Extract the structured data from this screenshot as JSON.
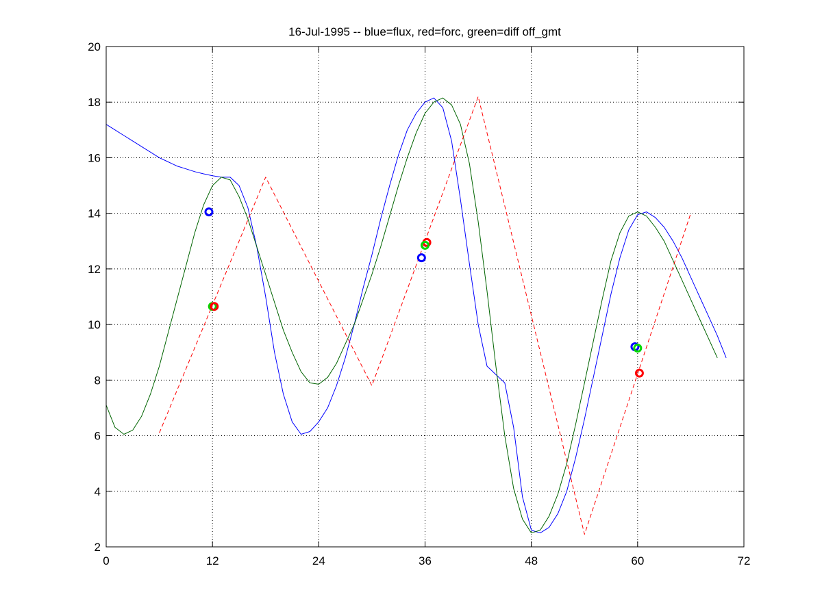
{
  "chart_data": {
    "type": "line",
    "title": "16-Jul-1995 -- blue=flux, red=forc, green=diff off_gmt",
    "xlabel": "",
    "ylabel": "",
    "xlim": [
      0,
      72
    ],
    "ylim": [
      2,
      20
    ],
    "xticks": [
      0,
      12,
      24,
      36,
      48,
      60,
      72
    ],
    "yticks": [
      2,
      4,
      6,
      8,
      10,
      12,
      14,
      16,
      18,
      20
    ],
    "grid": true,
    "legend": "none",
    "series": [
      {
        "color": "#0000ff",
        "style": "solid",
        "points": [
          [
            0,
            17.2
          ],
          [
            1,
            17.0
          ],
          [
            2,
            16.8
          ],
          [
            3,
            16.6
          ],
          [
            4,
            16.4
          ],
          [
            5,
            16.2
          ],
          [
            6,
            16.0
          ],
          [
            7,
            15.85
          ],
          [
            8,
            15.7
          ],
          [
            9,
            15.6
          ],
          [
            10,
            15.5
          ],
          [
            11,
            15.42
          ],
          [
            12,
            15.35
          ],
          [
            13,
            15.3
          ],
          [
            14,
            15.3
          ],
          [
            15,
            15.0
          ],
          [
            16,
            14.2
          ],
          [
            17,
            12.8
          ],
          [
            18,
            11.0
          ],
          [
            19,
            9.0
          ],
          [
            20,
            7.5
          ],
          [
            21,
            6.5
          ],
          [
            22,
            6.05
          ],
          [
            23,
            6.15
          ],
          [
            24,
            6.5
          ],
          [
            25,
            7.0
          ],
          [
            26,
            7.8
          ],
          [
            27,
            8.8
          ],
          [
            28,
            10.0
          ],
          [
            29,
            11.3
          ],
          [
            30,
            12.5
          ],
          [
            31,
            13.8
          ],
          [
            32,
            15.0
          ],
          [
            33,
            16.1
          ],
          [
            34,
            17.0
          ],
          [
            35,
            17.6
          ],
          [
            36,
            18.0
          ],
          [
            37,
            18.15
          ],
          [
            38,
            17.8
          ],
          [
            39,
            16.6
          ],
          [
            40,
            14.5
          ],
          [
            41,
            12.2
          ],
          [
            42,
            10.0
          ],
          [
            43,
            8.5
          ],
          [
            44,
            8.2
          ],
          [
            45,
            7.9
          ],
          [
            46,
            6.3
          ],
          [
            47,
            3.8
          ],
          [
            48,
            2.6
          ],
          [
            49,
            2.5
          ],
          [
            50,
            2.7
          ],
          [
            51,
            3.2
          ],
          [
            52,
            4.0
          ],
          [
            53,
            5.2
          ],
          [
            54,
            6.6
          ],
          [
            55,
            8.1
          ],
          [
            56,
            9.6
          ],
          [
            57,
            11.1
          ],
          [
            58,
            12.4
          ],
          [
            59,
            13.4
          ],
          [
            60,
            13.95
          ],
          [
            61,
            14.05
          ],
          [
            62,
            13.85
          ],
          [
            63,
            13.5
          ],
          [
            64,
            13.0
          ],
          [
            65,
            12.4
          ],
          [
            66,
            11.7
          ],
          [
            67,
            11.0
          ],
          [
            68,
            10.3
          ],
          [
            69,
            9.6
          ],
          [
            70,
            8.8
          ]
        ]
      },
      {
        "color": "#006400",
        "style": "solid",
        "points": [
          [
            0,
            7.1
          ],
          [
            1,
            6.3
          ],
          [
            2,
            6.05
          ],
          [
            3,
            6.2
          ],
          [
            4,
            6.7
          ],
          [
            5,
            7.5
          ],
          [
            6,
            8.5
          ],
          [
            7,
            9.7
          ],
          [
            8,
            10.9
          ],
          [
            9,
            12.1
          ],
          [
            10,
            13.3
          ],
          [
            11,
            14.3
          ],
          [
            12,
            15.0
          ],
          [
            13,
            15.3
          ],
          [
            14,
            15.2
          ],
          [
            15,
            14.6
          ],
          [
            16,
            13.8
          ],
          [
            17,
            12.8
          ],
          [
            18,
            11.8
          ],
          [
            19,
            10.8
          ],
          [
            20,
            9.8
          ],
          [
            21,
            9.0
          ],
          [
            22,
            8.3
          ],
          [
            23,
            7.9
          ],
          [
            24,
            7.85
          ],
          [
            25,
            8.1
          ],
          [
            26,
            8.6
          ],
          [
            27,
            9.3
          ],
          [
            28,
            10.0
          ],
          [
            29,
            10.9
          ],
          [
            30,
            11.8
          ],
          [
            31,
            12.8
          ],
          [
            32,
            13.9
          ],
          [
            33,
            15.0
          ],
          [
            34,
            16.0
          ],
          [
            35,
            16.9
          ],
          [
            36,
            17.6
          ],
          [
            37,
            18.0
          ],
          [
            38,
            18.15
          ],
          [
            39,
            17.9
          ],
          [
            40,
            17.2
          ],
          [
            41,
            15.8
          ],
          [
            42,
            13.7
          ],
          [
            43,
            11.2
          ],
          [
            44,
            8.5
          ],
          [
            45,
            6.0
          ],
          [
            46,
            4.1
          ],
          [
            47,
            3.0
          ],
          [
            48,
            2.5
          ],
          [
            49,
            2.6
          ],
          [
            50,
            3.1
          ],
          [
            51,
            3.9
          ],
          [
            52,
            5.0
          ],
          [
            53,
            6.4
          ],
          [
            54,
            7.9
          ],
          [
            55,
            9.4
          ],
          [
            56,
            10.9
          ],
          [
            57,
            12.3
          ],
          [
            58,
            13.3
          ],
          [
            59,
            13.9
          ],
          [
            60,
            14.05
          ],
          [
            61,
            13.9
          ],
          [
            62,
            13.5
          ],
          [
            63,
            13.0
          ],
          [
            64,
            12.3
          ],
          [
            65,
            11.6
          ],
          [
            66,
            10.9
          ],
          [
            67,
            10.2
          ],
          [
            68,
            9.5
          ],
          [
            69,
            8.8
          ]
        ]
      },
      {
        "color": "#ff0000",
        "style": "dashed",
        "points": [
          [
            6,
            6.1
          ],
          [
            18,
            15.3
          ],
          [
            30,
            7.8
          ],
          [
            42,
            18.2
          ],
          [
            54,
            2.45
          ],
          [
            66,
            14.0
          ]
        ]
      }
    ],
    "markers": [
      {
        "color": "#0000ff",
        "x": 11.6,
        "y": 14.05
      },
      {
        "color": "#00d800",
        "x": 12.0,
        "y": 10.65
      },
      {
        "color": "#ff0000",
        "x": 12.2,
        "y": 10.65
      },
      {
        "color": "#0000ff",
        "x": 35.6,
        "y": 12.4
      },
      {
        "color": "#ff0000",
        "x": 36.2,
        "y": 12.95
      },
      {
        "color": "#00d800",
        "x": 36.0,
        "y": 12.85
      },
      {
        "color": "#0000ff",
        "x": 59.7,
        "y": 9.2
      },
      {
        "color": "#00d800",
        "x": 60.0,
        "y": 9.15
      },
      {
        "color": "#ff0000",
        "x": 60.2,
        "y": 8.25
      }
    ]
  }
}
